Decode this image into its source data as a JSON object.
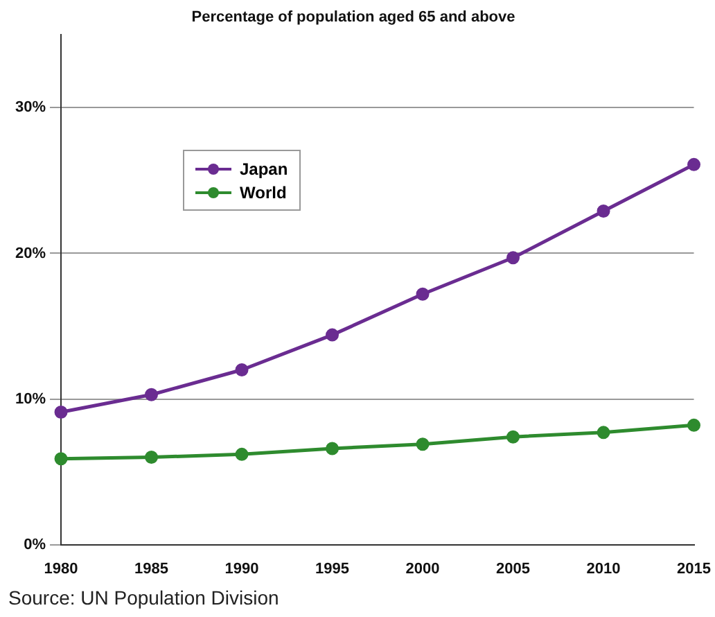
{
  "chart_data": {
    "type": "line",
    "title": "Percentage of population aged 65 and above",
    "categories": [
      "1980",
      "1985",
      "1990",
      "1995",
      "2000",
      "2005",
      "2010",
      "2015"
    ],
    "series": [
      {
        "name": "Japan",
        "color": "#6a2c91",
        "values": [
          9.1,
          10.3,
          12.0,
          14.4,
          17.2,
          19.7,
          22.9,
          26.1
        ]
      },
      {
        "name": "World",
        "color": "#2e8b2e",
        "values": [
          5.9,
          6.0,
          6.2,
          6.6,
          6.9,
          7.4,
          7.7,
          8.2
        ]
      }
    ],
    "ylim": [
      0,
      35
    ],
    "yticks": [
      {
        "value": 0,
        "label": "0%"
      },
      {
        "value": 10,
        "label": "10%"
      },
      {
        "value": 20,
        "label": "20%"
      },
      {
        "value": 30,
        "label": "30%"
      }
    ],
    "grid": "y",
    "legend": "top left",
    "marker": "circle",
    "line_style": "solid",
    "annotations": [
      "Source: UN Population Division"
    ]
  }
}
